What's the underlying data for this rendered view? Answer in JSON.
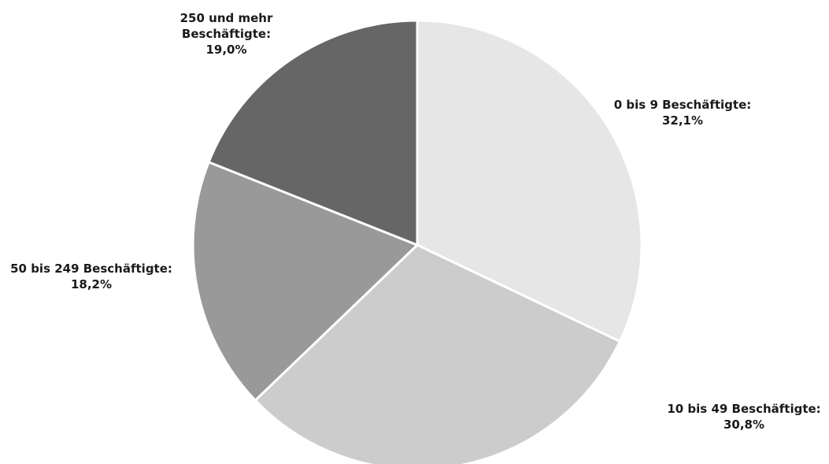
{
  "chart_data": {
    "type": "pie",
    "slices": [
      {
        "label": "0 bis 9 Beschäftigte:",
        "value": 32.1,
        "value_text": "32,1%",
        "color": "#e6e6e6"
      },
      {
        "label": "10 bis 49 Beschäftigte:",
        "value": 30.8,
        "value_text": "30,8%",
        "color": "#cccccc"
      },
      {
        "label": "50 bis 249 Beschäftigte:",
        "value": 18.2,
        "value_text": "18,2%",
        "color": "#999999"
      },
      {
        "label_lines": [
          "250 und mehr",
          "Beschäftigte:"
        ],
        "value": 19.0,
        "value_text": "19,0%",
        "color": "#666666"
      }
    ]
  }
}
